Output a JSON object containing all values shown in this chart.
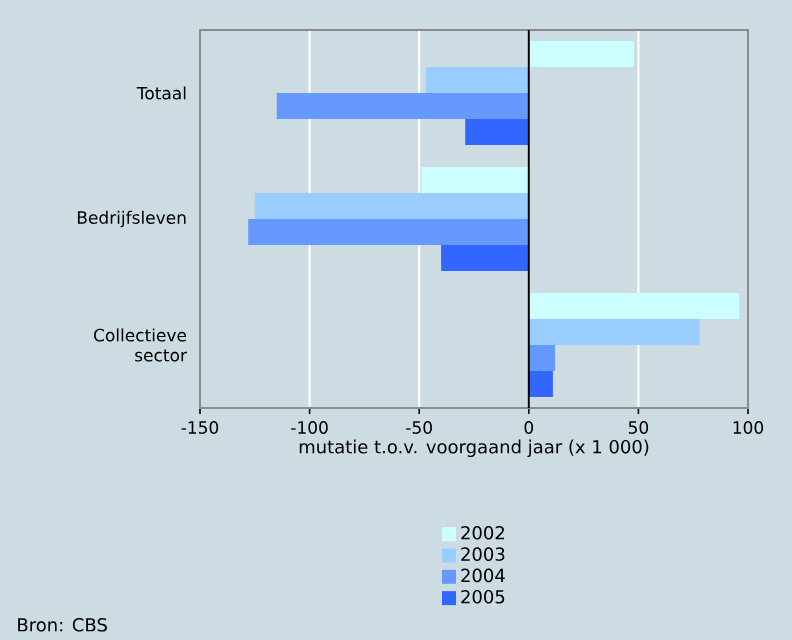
{
  "chart_data": {
    "type": "bar",
    "orientation": "horizontal",
    "xlabel": "mutatie t.o.v. voorgaand jaar (x 1 000)",
    "categories": [
      "Totaal",
      "Bedrijfsleven",
      "Collectieve sector"
    ],
    "series": [
      {
        "name": "2002",
        "color": "#ccffff",
        "values": [
          48,
          -49,
          96
        ]
      },
      {
        "name": "2003",
        "color": "#99ccff",
        "values": [
          -47,
          -125,
          78
        ]
      },
      {
        "name": "2004",
        "color": "#6699ff",
        "values": [
          -115,
          -128,
          12
        ]
      },
      {
        "name": "2005",
        "color": "#3366ff",
        "values": [
          -29,
          -40,
          11
        ]
      }
    ],
    "xlim": [
      -150,
      100
    ],
    "xticks": [
      -150,
      -100,
      -50,
      0,
      50,
      100
    ],
    "grid": "x",
    "legend": "bottom",
    "annotations": [
      "Bron: CBS"
    ]
  }
}
